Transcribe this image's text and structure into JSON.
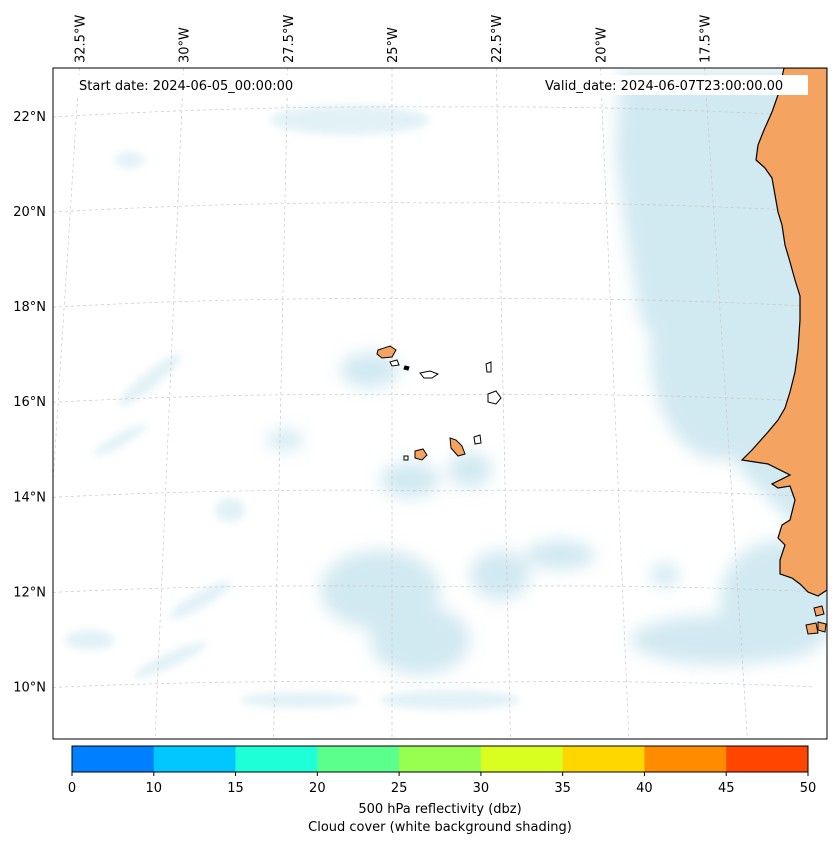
{
  "map": {
    "start_date_text": "Start date: 2024-06-05_00:00:00",
    "valid_date_text": "Valid_date: 2024-06-07T23:00:00.00",
    "lon_ticks": [
      {
        "label": "32.5°W",
        "lon": -32.5
      },
      {
        "label": "30°W",
        "lon": -30
      },
      {
        "label": "27.5°W",
        "lon": -27.5
      },
      {
        "label": "25°W",
        "lon": -25
      },
      {
        "label": "22.5°W",
        "lon": -22.5
      },
      {
        "label": "20°W",
        "lon": -20
      },
      {
        "label": "17.5°W",
        "lon": -17.5
      }
    ],
    "lat_ticks": [
      {
        "label": "22°N",
        "lat": 22
      },
      {
        "label": "20°N",
        "lat": 20
      },
      {
        "label": "18°N",
        "lat": 18
      },
      {
        "label": "16°N",
        "lat": 16
      },
      {
        "label": "14°N",
        "lat": 14
      },
      {
        "label": "12°N",
        "lat": 12
      },
      {
        "label": "10°N",
        "lat": 10
      }
    ],
    "extent": {
      "lon_min": -32.6,
      "lon_max": -15.4,
      "lat_min": 8.9,
      "lat_max": 22.8
    },
    "colors": {
      "land": "#f4a460",
      "cloud": "#add8e6",
      "coast": "#000000",
      "grid": "#c8c8c8"
    }
  },
  "colorbar": {
    "label_line1": "500 hPa reflectivity (dbz)",
    "label_line2": "Cloud cover (white background shading)",
    "ticks": [
      "0",
      "10",
      "15",
      "20",
      "25",
      "30",
      "35",
      "40",
      "45",
      "50"
    ],
    "colors": [
      "#0080ff",
      "#00c8ff",
      "#1effd8",
      "#5aff8c",
      "#98ff50",
      "#d8ff20",
      "#ffd700",
      "#ff8c00",
      "#ff4500"
    ]
  }
}
